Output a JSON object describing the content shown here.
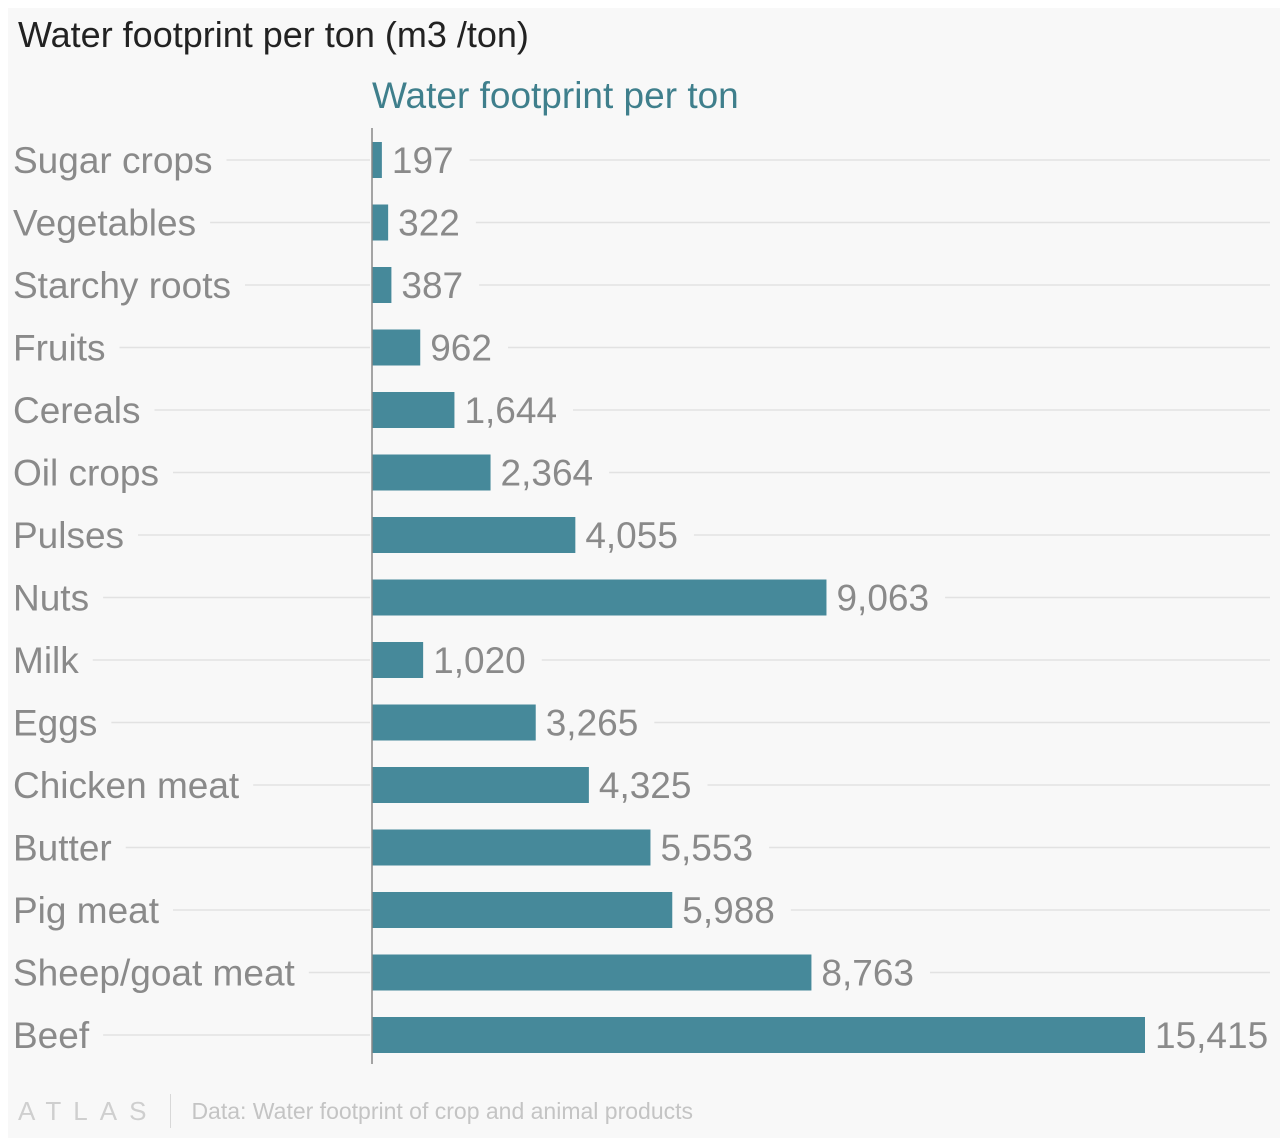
{
  "title": "Water footprint per ton (m3 /ton)",
  "footer": {
    "logo": "ATLAS",
    "source": "Data: Water footprint of crop and animal products"
  },
  "colors": {
    "bar": "#46899a",
    "series_title": "#3f7f8c",
    "gridline": "#e2e2e2",
    "axis": "#888888"
  },
  "chart_data": {
    "type": "bar",
    "orientation": "horizontal",
    "series_name": "Water footprint per ton",
    "categories": [
      "Sugar crops",
      "Vegetables",
      "Starchy roots",
      "Fruits",
      "Cereals",
      "Oil crops",
      "Pulses",
      "Nuts",
      "Milk",
      "Eggs",
      "Chicken meat",
      "Butter",
      "Pig meat",
      "Sheep/goat meat",
      "Beef"
    ],
    "values": [
      197,
      322,
      387,
      962,
      1644,
      2364,
      4055,
      9063,
      1020,
      3265,
      4325,
      5553,
      5988,
      8763,
      15415
    ],
    "value_labels": [
      "197",
      "322",
      "387",
      "962",
      "1,644",
      "2,364",
      "4,055",
      "9,063",
      "1,020",
      "3,265",
      "4,325",
      "5,553",
      "5,988",
      "8,763",
      "15,415"
    ],
    "xlim": [
      0,
      15415
    ],
    "grid": true,
    "legend": "top"
  }
}
